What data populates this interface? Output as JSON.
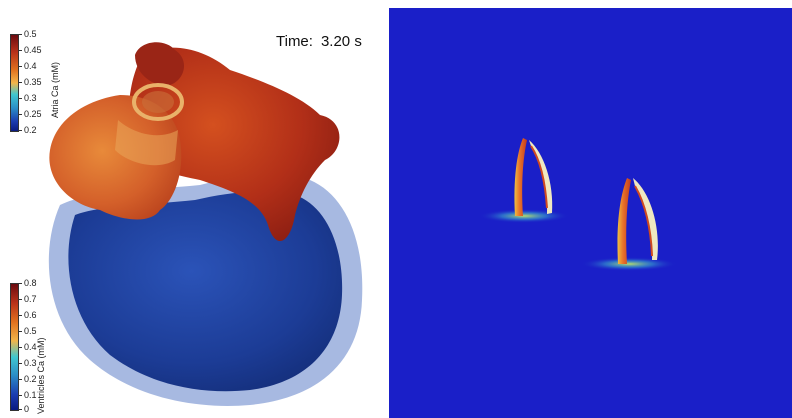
{
  "time": {
    "label": "Time:",
    "value": "3.20 s"
  },
  "colorbars": {
    "atria": {
      "title": "Atria Ca  (mM)",
      "ticks": [
        "0.5",
        "0.45",
        "0.4",
        "0.35",
        "0.3",
        "0.25",
        "0.2"
      ]
    },
    "ventricles": {
      "title": "Ventricles Ca (mM)",
      "ticks": [
        "0.8",
        "0.7",
        "0.6",
        "0.5",
        "0.4",
        "0.3",
        "0.2",
        "0.1",
        "0"
      ]
    }
  },
  "colors": {
    "atria": "#c43a1e",
    "ventricles": "#1d3f9a",
    "right_background": "#1a1fc8",
    "wavefront": "#e8742a"
  }
}
